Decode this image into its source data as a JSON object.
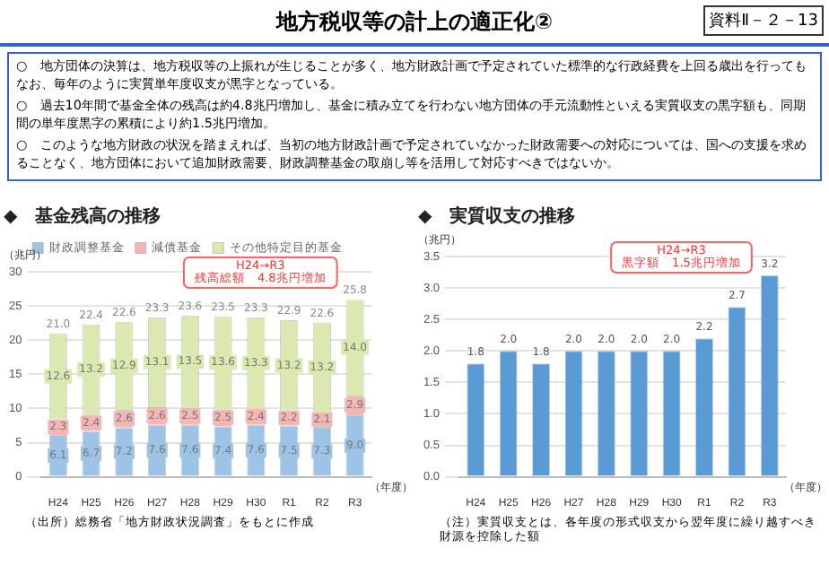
{
  "chart_data": [
    {
      "type": "other",
      "title": "地方税収等の計上の適正化②",
      "annotations": [
        "資料Ⅱ－２－13",
        "○　地方団体の決算は、地方税収等の上振れが生じることが多く、地方財政計画で予定されていた標準的な行政経費を上回る歳出を行ってもなお、毎年のように実質単年度収支が黒字となっている。",
        "○　過去10年間で基金全体の残高は約4.8兆円増加し、基金に積み立てを行わない地方団体の手元流動性といえる実質収支の黒字額も、同期間の単年度黒字の累積により約1.5兆円増加。",
        "○　このような地方財政の状況を踏まえれば、当初の地方財政計画で予定されていなかった財政需要への対応については、国への支援を求めることなく、地方団体において追加財政需要、財政調整基金の取崩し等を活用して対応すべきではないか。"
      ]
    },
    {
      "type": "bar",
      "title": "◆　基金残高の推移",
      "ylabel": "（兆円）",
      "xlabel": "（年度）",
      "stacked": true,
      "legend": "top",
      "grid": "y",
      "categories": [
        "H24",
        "H25",
        "H26",
        "H27",
        "H28",
        "H29",
        "H30",
        "R1",
        "R2",
        "R3"
      ],
      "series": [
        {
          "name": "財政調整基金",
          "color": "#9dc3e6",
          "values": [
            6.1,
            6.7,
            7.2,
            7.6,
            7.6,
            7.4,
            7.6,
            7.5,
            7.3,
            9.0
          ],
          "value_labels": [
            "6.1",
            "6.7",
            "7.2",
            "7.6",
            "7.6",
            "7.4",
            "7.6",
            "7.5",
            "7.3",
            "9.0"
          ]
        },
        {
          "name": "減債基金",
          "color": "#f4b6b4",
          "values": [
            2.3,
            2.4,
            2.6,
            2.6,
            2.5,
            2.5,
            2.4,
            2.2,
            2.1,
            2.9
          ],
          "value_labels": [
            "2.3",
            "2.4",
            "2.6",
            "2.6",
            "2.5",
            "2.5",
            "2.4",
            "2.2",
            "2.1",
            "2.9"
          ]
        },
        {
          "name": "その他特定目的基金",
          "color": "#dbe9b0",
          "values": [
            12.6,
            13.2,
            12.9,
            13.1,
            13.5,
            13.6,
            13.3,
            13.2,
            13.2,
            14.0
          ],
          "value_labels": [
            "12.6",
            "13.2",
            "12.9",
            "13.1",
            "13.5",
            "13.6",
            "13.3",
            "13.2",
            "13.2",
            "14.0"
          ]
        }
      ],
      "totals": [
        "21.0",
        "22.4",
        "22.6",
        "23.3",
        "23.6",
        "23.5",
        "23.3",
        "22.9",
        "22.6",
        "25.8"
      ],
      "ylim": [
        0,
        30
      ],
      "yticks": [
        0,
        5,
        10,
        15,
        20,
        25,
        30
      ],
      "annotations": [
        "H24→R3\n残高総額　4.8兆円増加",
        "（出所）総務省「地方財政状況調査」をもとに作成"
      ]
    },
    {
      "type": "bar",
      "title": "◆　実質収支の推移",
      "ylabel": "（兆円）",
      "xlabel": "（年度）",
      "grid": "y",
      "categories": [
        "H24",
        "H25",
        "H26",
        "H27",
        "H28",
        "H29",
        "H30",
        "R1",
        "R2",
        "R3"
      ],
      "series": [
        {
          "color": "#5b9bd5",
          "values": [
            1.8,
            2.0,
            1.8,
            2.0,
            2.0,
            2.0,
            2.0,
            2.2,
            2.7,
            3.2
          ],
          "value_labels": [
            "1.8",
            "2.0",
            "1.8",
            "2.0",
            "2.0",
            "2.0",
            "2.0",
            "2.2",
            "2.7",
            "3.2"
          ]
        }
      ],
      "ylim": [
        0,
        3.5
      ],
      "yticks": [
        {
          "value": 0,
          "label": "0.0"
        },
        0.5,
        {
          "value": 1,
          "label": "1.0"
        },
        1.5,
        {
          "value": 2,
          "label": "2.0"
        },
        2.5,
        {
          "value": 3,
          "label": "3.0"
        },
        3.5
      ],
      "annotations": [
        "H24→R3\n黒字額　1.5兆円増加",
        "（注）実質収支とは、各年度の形式収支から翌年度に繰り越すべき財源を控除した額"
      ]
    }
  ]
}
